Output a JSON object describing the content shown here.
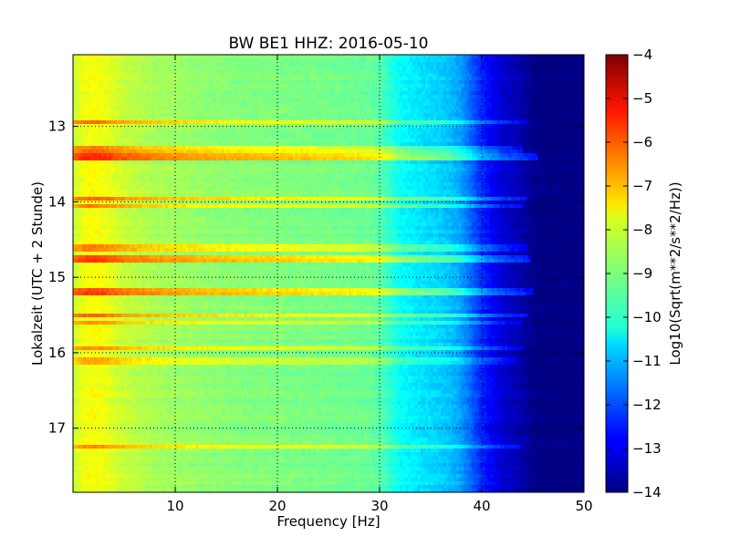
{
  "chart_data": {
    "type": "heatmap",
    "title": "BW BE1 HHZ: 2016-05-10",
    "xlabel": "Frequency [Hz]",
    "ylabel": "Lokalzeit (UTC + 2 Stunde)",
    "xlim": [
      0,
      50
    ],
    "ylim": [
      12.05,
      17.85
    ],
    "x_ticks": [
      10,
      20,
      30,
      40,
      50
    ],
    "y_ticks": [
      13,
      14,
      15,
      16,
      17
    ],
    "grid": true,
    "colormap": "jet",
    "colorbar": {
      "label": "Log10(Sqrt(m**2/s**2/Hz))",
      "range": [
        -14,
        -4
      ],
      "ticks": [
        -4,
        -5,
        -6,
        -7,
        -8,
        -9,
        -10,
        -11,
        -12,
        -13,
        -14
      ]
    },
    "frequency_profile": {
      "frequency_hz": [
        0,
        1,
        2,
        3,
        4,
        5,
        8,
        10,
        15,
        20,
        25,
        29,
        30,
        31,
        32,
        34,
        36,
        37,
        38,
        39,
        40,
        41,
        42,
        43,
        44,
        45,
        46,
        50
      ],
      "log10_amplitude": [
        -8.3,
        -7.9,
        -7.8,
        -7.9,
        -8.1,
        -8.3,
        -8.6,
        -8.7,
        -8.9,
        -9.0,
        -9.1,
        -9.2,
        -9.4,
        -9.8,
        -10.2,
        -10.5,
        -10.7,
        -10.9,
        -11.2,
        -11.8,
        -12.4,
        -12.8,
        -13.2,
        -13.4,
        -13.6,
        -13.9,
        -14.0,
        -14.0
      ]
    },
    "noise_bands": [
      {
        "time": 12.95,
        "freq_max": 44.5,
        "delta": 1.5
      },
      {
        "time": 13.3,
        "freq_max": 44.0,
        "delta": 1.5
      },
      {
        "time": 13.4,
        "freq_max": 45.5,
        "delta": 2.2
      },
      {
        "time": 13.95,
        "freq_max": 44.5,
        "delta": 1.6
      },
      {
        "time": 14.05,
        "freq_max": 44.0,
        "delta": 1.3
      },
      {
        "time": 14.6,
        "freq_max": 44.5,
        "delta": 1.4
      },
      {
        "time": 14.75,
        "freq_max": 44.8,
        "delta": 2.0
      },
      {
        "time": 15.2,
        "freq_max": 45.0,
        "delta": 2.0
      },
      {
        "time": 15.5,
        "freq_max": 44.5,
        "delta": 1.5
      },
      {
        "time": 15.6,
        "freq_max": 44.0,
        "delta": 1.3
      },
      {
        "time": 15.95,
        "freq_max": 44.0,
        "delta": 1.3
      },
      {
        "time": 16.1,
        "freq_max": 43.5,
        "delta": 1.0
      },
      {
        "time": 17.25,
        "freq_max": 44.0,
        "delta": 1.2
      }
    ]
  }
}
